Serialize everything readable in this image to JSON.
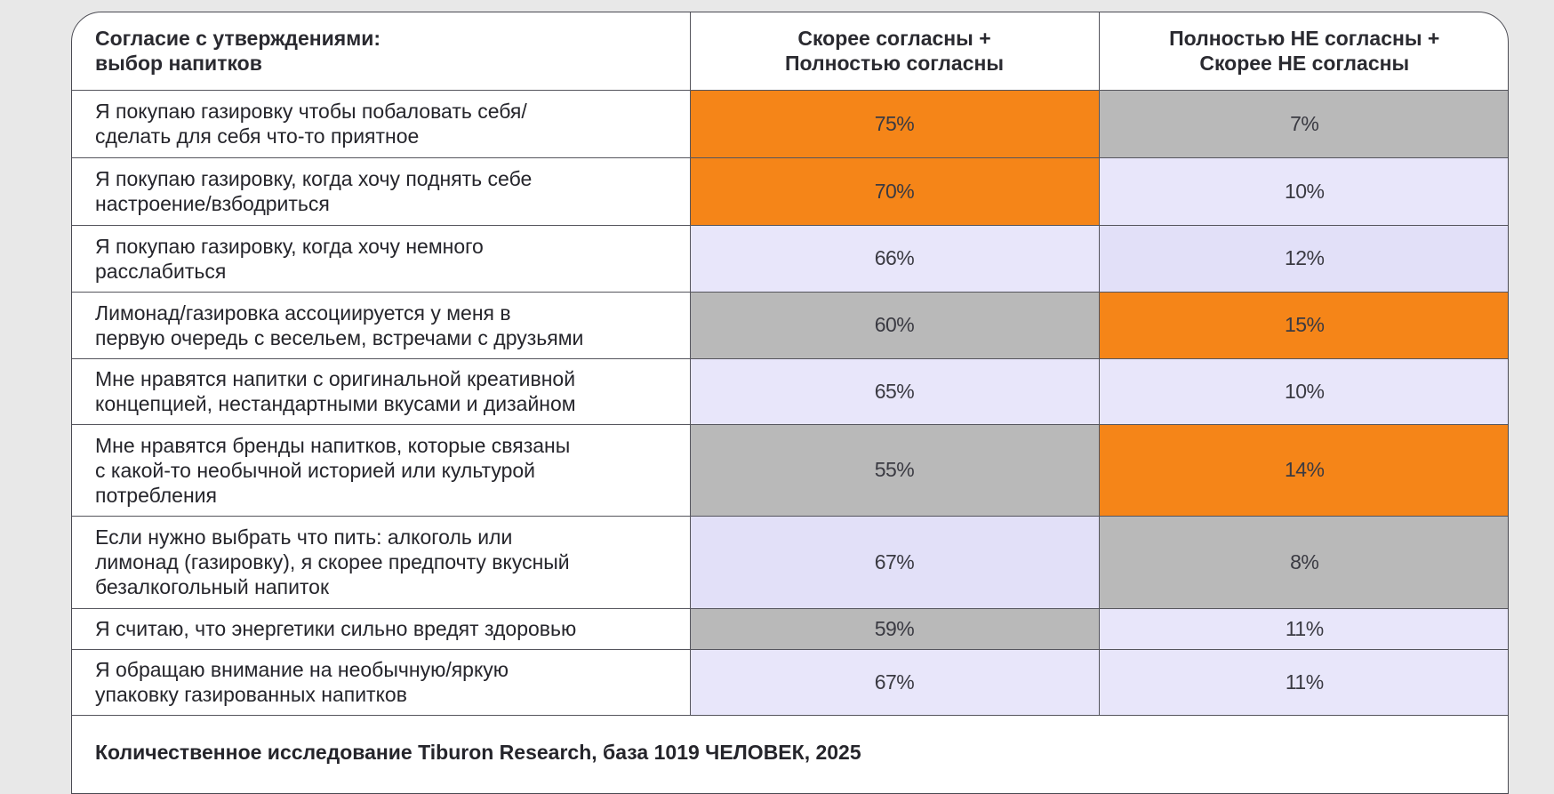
{
  "table": {
    "header": {
      "statement_col": [
        "Согласие с утверждениями:",
        "выбор напитков"
      ],
      "agree_col": [
        "Скорее согласны +",
        "Полностью согласны"
      ],
      "disagree_col": [
        "Полностью НЕ согласны +",
        "Скорее НЕ согласны"
      ]
    },
    "rows": [
      {
        "statement": [
          "Я покупаю газировку чтобы побаловать себя/",
          "сделать для себя что-то приятное"
        ],
        "agree": "75%",
        "agree_color": "orange",
        "disagree": "7%",
        "disagree_color": "gray"
      },
      {
        "statement": [
          "Я покупаю газировку, когда хочу поднять себе",
          "настроение/взбодриться"
        ],
        "agree": "70%",
        "agree_color": "orange",
        "disagree": "10%",
        "disagree_color": "lavender"
      },
      {
        "statement": [
          "Я покупаю газировку, когда хочу немного",
          "расслабиться"
        ],
        "agree": "66%",
        "agree_color": "lavender",
        "disagree": "12%",
        "disagree_color": "lavender-dark"
      },
      {
        "statement": [
          "Лимонад/газировка ассоциируется у меня в",
          "первую очередь с весельем, встречами с друзьями"
        ],
        "agree": "60%",
        "agree_color": "gray",
        "disagree": "15%",
        "disagree_color": "orange"
      },
      {
        "statement": [
          "Мне нравятся напитки с оригинальной креативной",
          "концепцией, нестандартными вкусами и дизайном"
        ],
        "agree": "65%",
        "agree_color": "lavender",
        "disagree": "10%",
        "disagree_color": "lavender"
      },
      {
        "statement": [
          "Мне нравятся бренды напитков, которые связаны",
          "с какой-то необычной историей или культурой",
          "потребления"
        ],
        "agree": "55%",
        "agree_color": "gray",
        "disagree": "14%",
        "disagree_color": "orange"
      },
      {
        "statement": [
          "Если нужно выбрать что пить: алкоголь или",
          "лимонад (газировку), я скорее предпочту вкусный",
          "безалкогольный напиток"
        ],
        "agree": "67%",
        "agree_color": "lavender-dark",
        "disagree": "8%",
        "disagree_color": "gray"
      },
      {
        "statement": [
          "Я считаю, что энергетики сильно вредят здоровью"
        ],
        "agree": "59%",
        "agree_color": "gray",
        "disagree": "11%",
        "disagree_color": "lavender"
      },
      {
        "statement": [
          "Я обращаю внимание на необычную/яркую",
          "упаковку газированных напитков"
        ],
        "agree": "67%",
        "agree_color": "lavender",
        "disagree": "11%",
        "disagree_color": "lavender"
      }
    ],
    "footer": "Количественное исследование Tiburon Research, база 1019 ЧЕЛОВЕК, 2025"
  },
  "colors": {
    "orange": "#f58518",
    "gray": "#b9b9b9",
    "lavender": "#e8e6fa",
    "lavender-dark": "#e2e0f8",
    "background": "#e8e8e8",
    "border": "#55555d"
  }
}
